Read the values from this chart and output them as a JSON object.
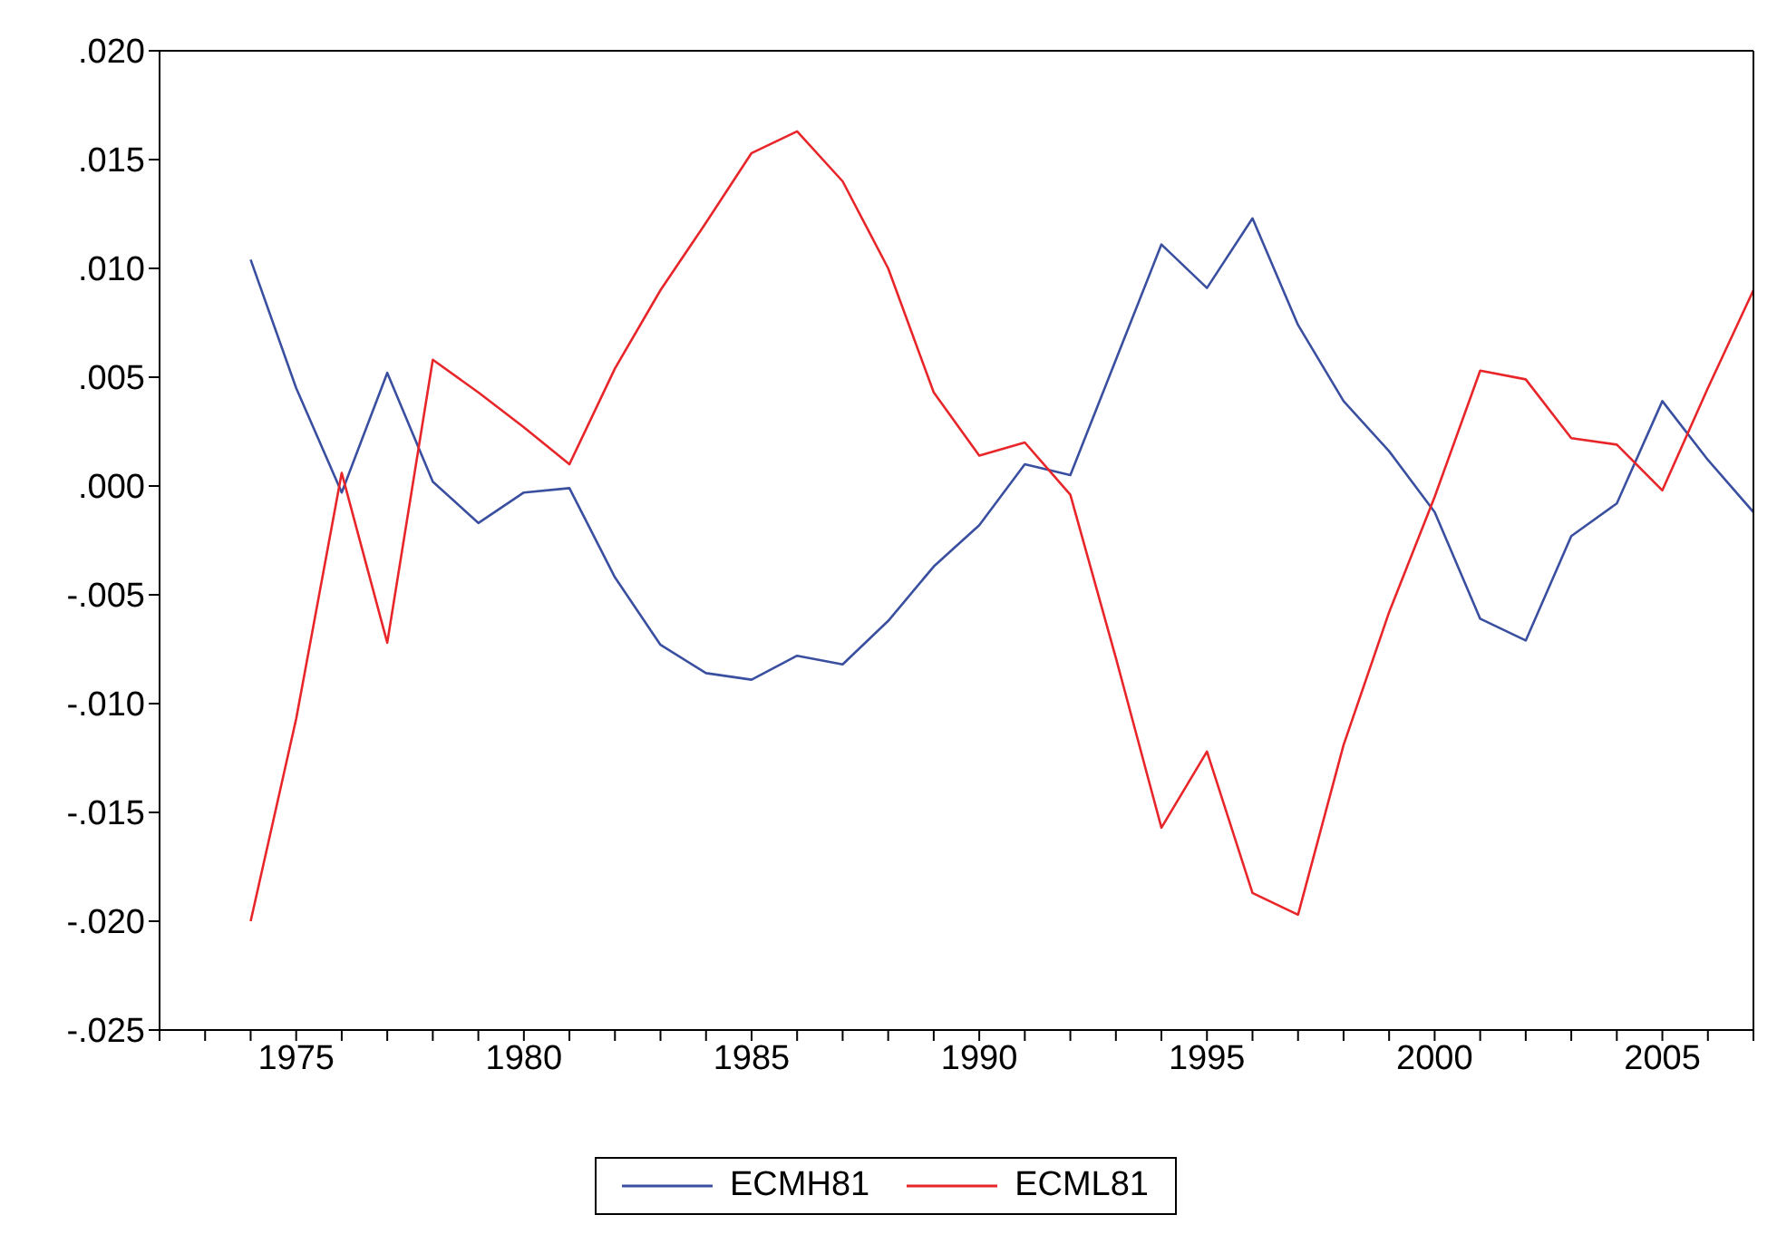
{
  "chart_data": {
    "type": "line",
    "x": [
      1974,
      1975,
      1976,
      1977,
      1978,
      1979,
      1980,
      1981,
      1982,
      1983,
      1984,
      1985,
      1986,
      1987,
      1988,
      1989,
      1990,
      1991,
      1992,
      1993,
      1994,
      1995,
      1996,
      1997,
      1998,
      1999,
      2000,
      2001,
      2002,
      2003,
      2004,
      2005,
      2006,
      2007
    ],
    "series": [
      {
        "name": "ECMH81",
        "color": "#3a4fa0",
        "values": [
          0.0104,
          0.0045,
          -0.0003,
          0.0052,
          0.0002,
          -0.0017,
          -0.0003,
          -0.0001,
          -0.0042,
          -0.0073,
          -0.0086,
          -0.0089,
          -0.0078,
          -0.0082,
          -0.0062,
          -0.0037,
          -0.0018,
          0.001,
          0.0005,
          0.0058,
          0.0111,
          0.0091,
          0.0123,
          0.0074,
          0.0039,
          0.0016,
          -0.0012,
          -0.0061,
          -0.0071,
          -0.0023,
          -0.0008,
          0.0039,
          0.0012,
          -0.0012
        ]
      },
      {
        "name": "ECML81",
        "color": "#e8262a",
        "values": [
          -0.02,
          -0.0107,
          0.0006,
          -0.0072,
          0.0058,
          0.0043,
          0.0027,
          0.001,
          0.0054,
          0.009,
          0.0121,
          0.0153,
          0.0163,
          0.014,
          0.01,
          0.0043,
          0.0014,
          0.002,
          -0.0004,
          -0.0079,
          -0.0157,
          -0.0122,
          -0.0187,
          -0.0197,
          -0.0119,
          -0.0058,
          -0.0005,
          0.0053,
          0.0049,
          0.0022,
          0.0019,
          -0.0002,
          0.0045,
          0.009
        ]
      }
    ],
    "xlim": [
      1972,
      2007
    ],
    "xticks": [
      {
        "value": 1972,
        "label": null
      },
      {
        "value": 1973,
        "label": null
      },
      {
        "value": 1974,
        "label": null
      },
      1975,
      {
        "value": 1976,
        "label": null
      },
      {
        "value": 1977,
        "label": null
      },
      {
        "value": 1978,
        "label": null
      },
      {
        "value": 1979,
        "label": null
      },
      1980,
      {
        "value": 1981,
        "label": null
      },
      {
        "value": 1982,
        "label": null
      },
      {
        "value": 1983,
        "label": null
      },
      {
        "value": 1984,
        "label": null
      },
      1985,
      {
        "value": 1986,
        "label": null
      },
      {
        "value": 1987,
        "label": null
      },
      {
        "value": 1988,
        "label": null
      },
      {
        "value": 1989,
        "label": null
      },
      1990,
      {
        "value": 1991,
        "label": null
      },
      {
        "value": 1992,
        "label": null
      },
      {
        "value": 1993,
        "label": null
      },
      {
        "value": 1994,
        "label": null
      },
      1995,
      {
        "value": 1996,
        "label": null
      },
      {
        "value": 1997,
        "label": null
      },
      {
        "value": 1998,
        "label": null
      },
      {
        "value": 1999,
        "label": null
      },
      2000,
      {
        "value": 2001,
        "label": null
      },
      {
        "value": 2002,
        "label": null
      },
      {
        "value": 2003,
        "label": null
      },
      {
        "value": 2004,
        "label": null
      },
      2005,
      {
        "value": 2006,
        "label": null
      },
      {
        "value": 2007,
        "label": null
      }
    ],
    "ylim": [
      -0.025,
      0.02
    ],
    "yticks": [
      {
        "value": -0.025,
        "label": "-.025"
      },
      {
        "value": -0.02,
        "label": "-.020"
      },
      {
        "value": -0.015,
        "label": "-.015"
      },
      {
        "value": -0.01,
        "label": "-.010"
      },
      {
        "value": -0.005,
        "label": "-.005"
      },
      {
        "value": 0,
        "label": ".000"
      },
      {
        "value": 0.005,
        "label": ".005"
      },
      {
        "value": 0.01,
        "label": ".010"
      },
      {
        "value": 0.015,
        "label": ".015"
      },
      {
        "value": 0.02,
        "label": ".020"
      }
    ],
    "grid": false,
    "legend": "bottom",
    "marker": "none",
    "line_style": "solid"
  }
}
